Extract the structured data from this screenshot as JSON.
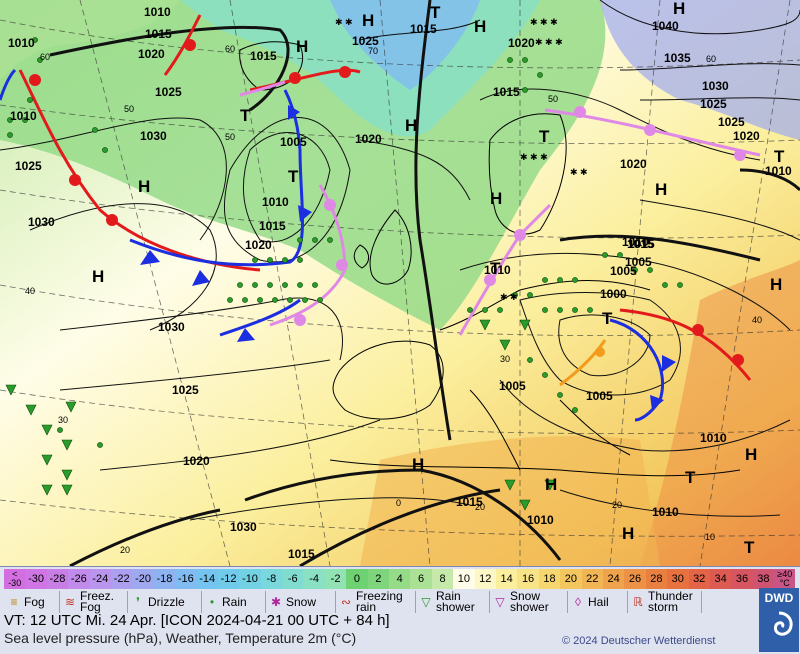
{
  "map": {
    "isobars": [
      "1010",
      "1010",
      "1015",
      "1020",
      "1025",
      "1030",
      "1025",
      "1030",
      "1020",
      "1015",
      "1010",
      "1005",
      "1010",
      "1015",
      "1020",
      "1030",
      "1025",
      "1020",
      "1025",
      "1015",
      "1020",
      "1015",
      "1010",
      "1005",
      "1000",
      "1005",
      "1005",
      "1005",
      "1010",
      "1015",
      "1010",
      "1015",
      "1020",
      "1025",
      "1030",
      "1035",
      "1040",
      "1030",
      "1025",
      "1020",
      "1015",
      "1010",
      "1010",
      "1015",
      "1010"
    ],
    "centers": [
      "H",
      "H",
      "H",
      "H",
      "H",
      "H",
      "H",
      "H",
      "H",
      "H",
      "H",
      "H",
      "H",
      "H",
      "T",
      "T",
      "T",
      "T",
      "T",
      "T",
      "T",
      "T",
      "T"
    ],
    "temps": [
      "60",
      "50",
      "40",
      "30",
      "70",
      "60",
      "50",
      "40",
      "30",
      "20",
      "10",
      "0",
      "20",
      "20",
      "60",
      "50"
    ]
  },
  "scale": {
    "steps": [
      {
        "label": "<\n-30",
        "color": "#d36ee0"
      },
      {
        "label": "-30",
        "color": "#cf75e4"
      },
      {
        "label": "-28",
        "color": "#c97ee6"
      },
      {
        "label": "-26",
        "color": "#c28aea"
      },
      {
        "label": "-24",
        "color": "#b995ed"
      },
      {
        "label": "-22",
        "color": "#ad9fef"
      },
      {
        "label": "-20",
        "color": "#9ea9f0"
      },
      {
        "label": "-18",
        "color": "#8fb3f1"
      },
      {
        "label": "-16",
        "color": "#80bcf1"
      },
      {
        "label": "-14",
        "color": "#75c4ef"
      },
      {
        "label": "-12",
        "color": "#70cbea"
      },
      {
        "label": "-10",
        "color": "#72d2e4"
      },
      {
        "label": "-8",
        "color": "#78d8dc"
      },
      {
        "label": "-6",
        "color": "#80dccf"
      },
      {
        "label": "-4",
        "color": "#8ae0c2"
      },
      {
        "label": "-2",
        "color": "#92e3b3"
      },
      {
        "label": "0",
        "color": "#6fd272"
      },
      {
        "label": "2",
        "color": "#7ed57c"
      },
      {
        "label": "4",
        "color": "#95db88"
      },
      {
        "label": "6",
        "color": "#abe195"
      },
      {
        "label": "8",
        "color": "#c5e9a8"
      },
      {
        "label": "10",
        "color": "#fffde8"
      },
      {
        "label": "12",
        "color": "#fdf6c6"
      },
      {
        "label": "14",
        "color": "#fbef9e"
      },
      {
        "label": "16",
        "color": "#f8e486"
      },
      {
        "label": "18",
        "color": "#f6d66f"
      },
      {
        "label": "20",
        "color": "#f3c75d"
      },
      {
        "label": "22",
        "color": "#f1b653"
      },
      {
        "label": "24",
        "color": "#eea34c"
      },
      {
        "label": "26",
        "color": "#ec9146"
      },
      {
        "label": "28",
        "color": "#ea8040"
      },
      {
        "label": "30",
        "color": "#e87140"
      },
      {
        "label": "32",
        "color": "#e36447"
      },
      {
        "label": "34",
        "color": "#dd5a52"
      },
      {
        "label": "36",
        "color": "#d65561"
      },
      {
        "label": "38",
        "color": "#cf5472"
      },
      {
        "label": "≥40\n°C",
        "color": "#c95586"
      }
    ]
  },
  "legend": [
    {
      "label": "Fog",
      "icon": "fog-icon"
    },
    {
      "label": "Freez.\nFog",
      "icon": "freezing-fog-icon"
    },
    {
      "label": "Drizzle",
      "icon": "drizzle-icon"
    },
    {
      "label": "Rain",
      "icon": "rain-icon"
    },
    {
      "label": "Snow",
      "icon": "snow-icon"
    },
    {
      "label": "Freezing\nrain",
      "icon": "freezing-rain-icon"
    },
    {
      "label": "Rain\nshower",
      "icon": "rain-shower-icon"
    },
    {
      "label": "Snow\nshower",
      "icon": "snow-shower-icon"
    },
    {
      "label": "Hail",
      "icon": "hail-icon"
    },
    {
      "label": "Thunder\nstorm",
      "icon": "thunderstorm-icon"
    }
  ],
  "footer": {
    "valid_time": "VT: 12 UTC Mi.  24 Apr. [ICON 2024-04-21  00 UTC + 84 h]",
    "description": "Sea level pressure (hPa), Weather, Temperature 2m (°C)",
    "copyright": "© 2024 Deutscher Wetterdienst",
    "logo_text": "DWD"
  }
}
